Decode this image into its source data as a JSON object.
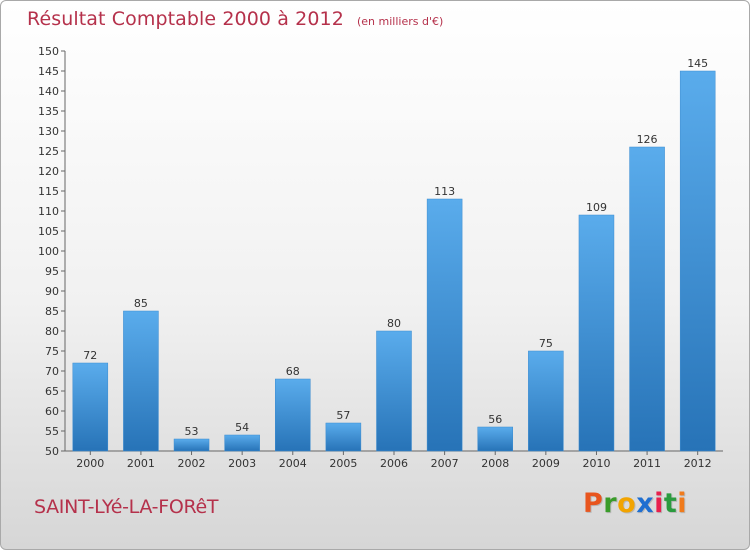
{
  "header": {
    "title": "Résultat Comptable 2000 à 2012",
    "unit": "(en milliers d'€)"
  },
  "footer": {
    "commune": "SAINT-LYé-LA-FORêT",
    "logo_letters": [
      "P",
      "r",
      "o",
      "x",
      "i",
      "t",
      "i"
    ],
    "logo_colors": [
      "#e8551e",
      "#3a9c2a",
      "#f2a400",
      "#1f6fd1",
      "#e81f4c",
      "#2a9b3e",
      "#f07b1c"
    ]
  },
  "colors": {
    "bar_light": "#5aacec",
    "bar_dark": "#2773b7",
    "title": "#b5314b",
    "grid": "#cccccc"
  },
  "chart_data": {
    "type": "bar",
    "title": "Résultat Comptable 2000 à 2012",
    "subtitle": "(en milliers d'€)",
    "xlabel": "",
    "ylabel": "",
    "categories": [
      "2000",
      "2001",
      "2002",
      "2003",
      "2004",
      "2005",
      "2006",
      "2007",
      "2008",
      "2009",
      "2010",
      "2011",
      "2012"
    ],
    "values": [
      72,
      85,
      53,
      54,
      68,
      57,
      80,
      113,
      56,
      75,
      109,
      126,
      145
    ],
    "ylim": [
      50,
      150
    ],
    "ytick_step": 5,
    "grid": false,
    "data_labels": true
  }
}
